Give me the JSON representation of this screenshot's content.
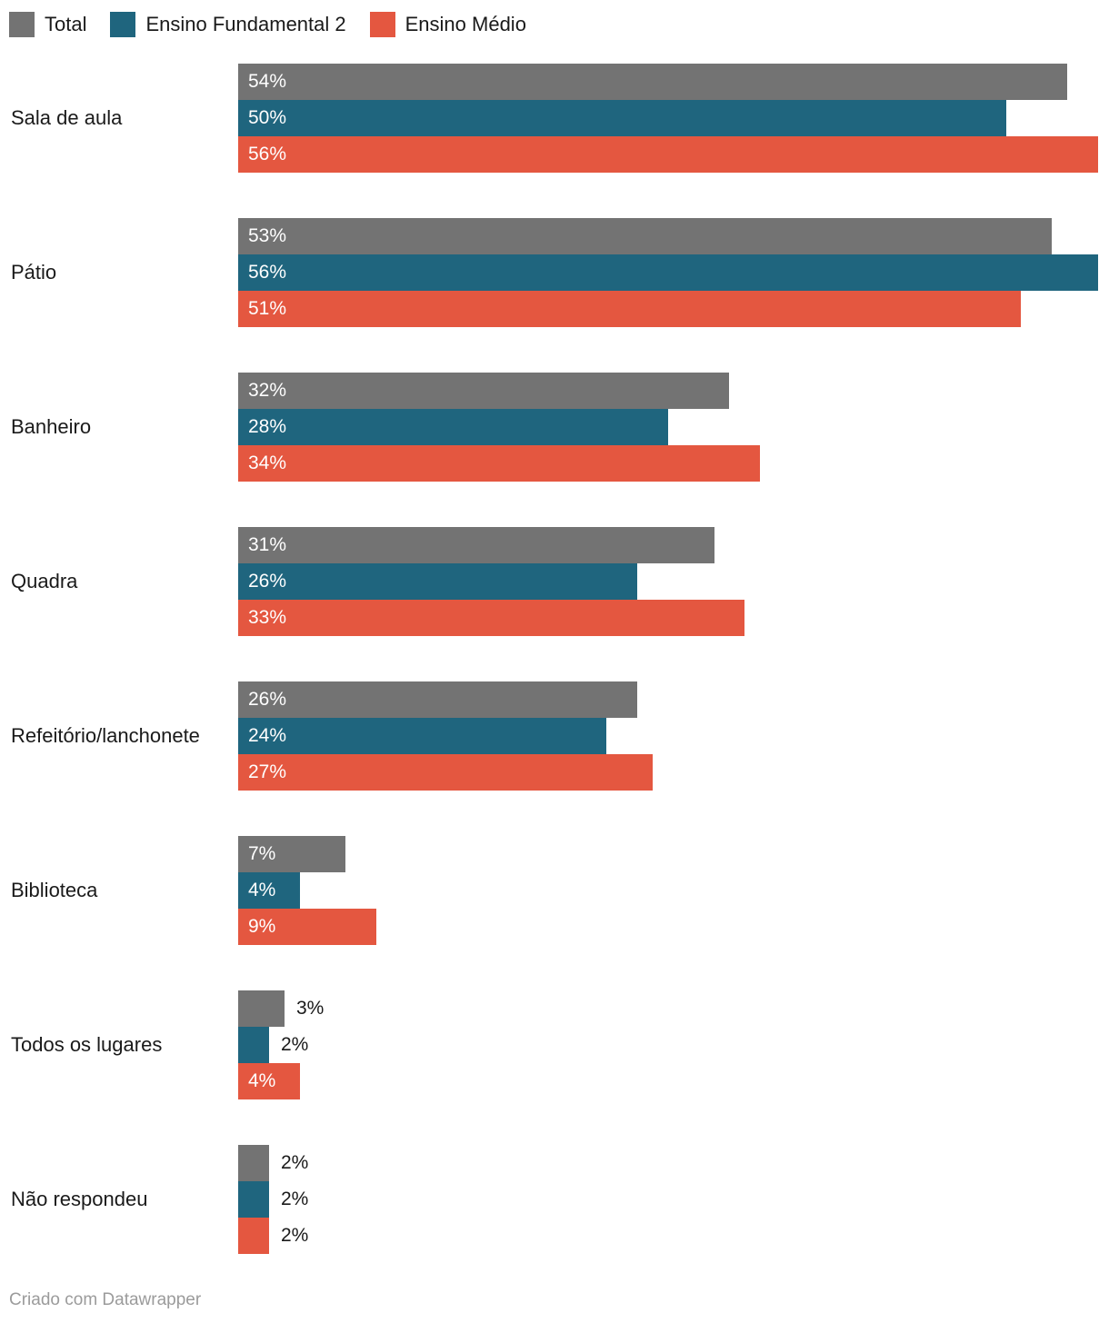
{
  "legend": {
    "items": [
      {
        "label": "Total",
        "color": "#737373"
      },
      {
        "label": "Ensino Fundamental 2",
        "color": "#1f657e"
      },
      {
        "label": "Ensino Médio",
        "color": "#e45740"
      }
    ]
  },
  "footer": {
    "attribution": "Criado com Datawrapper"
  },
  "chart_data": {
    "type": "bar",
    "orientation": "horizontal",
    "title": "",
    "xlabel": "",
    "ylabel": "",
    "value_format": "percent",
    "xlim": [
      0,
      56
    ],
    "grid": false,
    "legend_position": "top",
    "categories": [
      "Sala de aula",
      "Pátio",
      "Banheiro",
      "Quadra",
      "Refeitório/lanchonete",
      "Biblioteca",
      "Todos os lugares",
      "Não respondeu"
    ],
    "series": [
      {
        "name": "Total",
        "color": "#737373",
        "values": [
          54,
          53,
          32,
          31,
          26,
          7,
          3,
          2
        ]
      },
      {
        "name": "Ensino Fundamental 2",
        "color": "#1f657e",
        "values": [
          50,
          56,
          28,
          26,
          24,
          4,
          2,
          2
        ]
      },
      {
        "name": "Ensino Médio",
        "color": "#e45740",
        "values": [
          56,
          51,
          34,
          33,
          27,
          9,
          4,
          2
        ]
      }
    ]
  }
}
